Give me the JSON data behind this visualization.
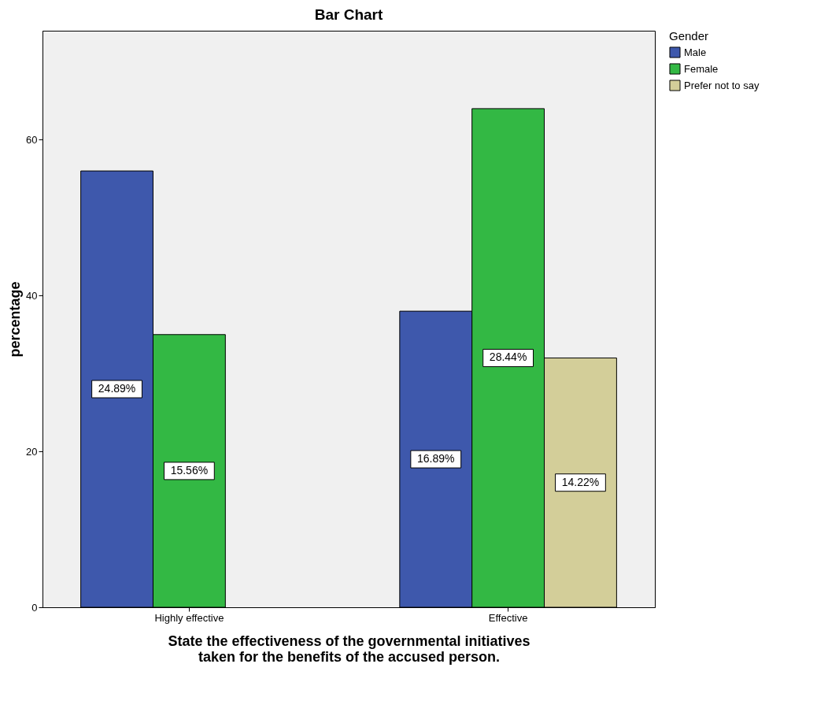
{
  "chart_data": {
    "type": "bar",
    "title": "Bar Chart",
    "xlabel": "State the effectiveness of the governmental initiatives\ntaken for the benefits of the accused person.",
    "ylabel": "percentage",
    "legend_title": "Gender",
    "legend": "top right",
    "grid": false,
    "categories": [
      "Highly effective",
      "Effective"
    ],
    "series": [
      {
        "name": "Male",
        "color": "#3e58ac",
        "values": [
          56,
          38
        ]
      },
      {
        "name": "Female",
        "color": "#33b844",
        "values": [
          35,
          64
        ]
      },
      {
        "name": "Prefer not to say",
        "color": "#d3ce99",
        "values": [
          null,
          32
        ]
      }
    ],
    "annotations": [
      "24.89%",
      "15.56%",
      "16.89%",
      "28.44%",
      "14.22%"
    ],
    "ylim": [
      0,
      74
    ],
    "yticks": [
      0,
      20,
      40,
      60
    ]
  }
}
